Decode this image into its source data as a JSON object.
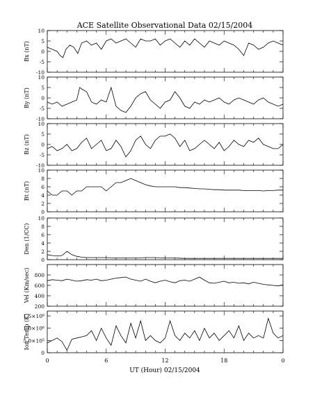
{
  "chart_data": {
    "type": "line",
    "title": "ACE Satellite Observational Data  02/15/2004",
    "xlabel": "UT (Hour)  02/15/2004",
    "x_range": [
      0,
      24
    ],
    "x_tick_labels": [
      "0",
      "6",
      "12",
      "18",
      "0"
    ],
    "grid": false,
    "panels": [
      {
        "ylabel": "Bx (nT)",
        "ylim": [
          -10,
          10
        ],
        "y_ticks": [
          "-10",
          "-5",
          "0",
          "5",
          "10"
        ],
        "series": [
          {
            "x": [
              0,
              0.5,
              1,
              1.3,
              1.6,
              1.9,
              2.3,
              2.7,
              3.1,
              3.5,
              4,
              4.5,
              5,
              5.5,
              6,
              6.5,
              7,
              7.5,
              8,
              8.5,
              9,
              9.5,
              10,
              10.5,
              11,
              11.5,
              12,
              12.5,
              13,
              13.5,
              14,
              14.5,
              15,
              15.5,
              16,
              16.5,
              17,
              17.5,
              18,
              18.5,
              19,
              19.5,
              20,
              20.5,
              21,
              21.5,
              22,
              22.5,
              23,
              23.5,
              24
            ],
            "values": [
              2,
              1,
              0,
              -2,
              -3,
              1,
              3,
              2,
              -1,
              4,
              5,
              3,
              4,
              1,
              5,
              6,
              4,
              5,
              6,
              4,
              2,
              6,
              5,
              5,
              6,
              3,
              5,
              6,
              4,
              2,
              5,
              3,
              6,
              4,
              2,
              5,
              4,
              3,
              5,
              4,
              3,
              1,
              -2,
              4,
              3,
              1,
              2,
              4,
              5,
              4,
              3
            ]
          }
        ]
      },
      {
        "ylabel": "By (nT)",
        "ylim": [
          -10,
          10
        ],
        "y_ticks": [
          "-10",
          "-5",
          "0",
          "5",
          "10"
        ],
        "series": [
          {
            "x": [
              0,
              0.5,
              1,
              1.5,
              2,
              2.5,
              3,
              3.3,
              3.6,
              4,
              4.5,
              5,
              5.5,
              6,
              6.5,
              7,
              7.5,
              8,
              8.5,
              9,
              9.5,
              10,
              10.5,
              11,
              11.5,
              12,
              12.5,
              13,
              13.5,
              14,
              14.5,
              15,
              15.5,
              16,
              16.5,
              17,
              17.5,
              18,
              18.5,
              19,
              19.5,
              20,
              20.5,
              21,
              21.5,
              22,
              22.5,
              23,
              23.5,
              24
            ],
            "values": [
              -2,
              -3,
              -2,
              -4,
              -3,
              -2,
              -1,
              5,
              4,
              3,
              -2,
              -3,
              -1,
              -2,
              5,
              -4,
              -6,
              -7,
              -4,
              0,
              2,
              3,
              -1,
              -3,
              -5,
              -2,
              -1,
              3,
              0,
              -4,
              -5,
              -2,
              -3,
              -1,
              -2,
              -1,
              0,
              -2,
              -3,
              -1,
              0,
              -1,
              -2,
              -3,
              -1,
              0,
              -2,
              -3,
              -4,
              -3
            ]
          }
        ]
      },
      {
        "ylabel": "Bz (nT)",
        "ylim": [
          -10,
          10
        ],
        "y_ticks": [
          "-10",
          "-5",
          "0",
          "5",
          "10"
        ],
        "series": [
          {
            "x": [
              0,
              0.5,
              1,
              1.5,
              2,
              2.5,
              3,
              3.5,
              4,
              4.5,
              5,
              5.5,
              6,
              6.5,
              7,
              7.5,
              8,
              8.5,
              9,
              9.5,
              10,
              10.5,
              11,
              11.5,
              12,
              12.5,
              13,
              13.5,
              14,
              14.5,
              15,
              15.5,
              16,
              16.5,
              17,
              17.5,
              18,
              18.5,
              19,
              19.5,
              20,
              20.5,
              21,
              21.5,
              22,
              22.5,
              23,
              23.5,
              24
            ],
            "values": [
              -2,
              -1,
              -3,
              -2,
              0,
              -3,
              -2,
              1,
              3,
              -2,
              0,
              2,
              -3,
              -2,
              2,
              -1,
              -6,
              -3,
              2,
              4,
              0,
              -2,
              2,
              4,
              4,
              5,
              3,
              -1,
              2,
              -3,
              -2,
              0,
              2,
              0,
              -2,
              1,
              -3,
              -1,
              2,
              0,
              -1,
              2,
              1,
              3,
              0,
              -1,
              -2,
              -2,
              0
            ]
          }
        ]
      },
      {
        "ylabel": "Bt (nT)",
        "ylim": [
          0,
          10
        ],
        "y_ticks": [
          "0",
          "2",
          "4",
          "6",
          "8",
          "10"
        ],
        "series": [
          {
            "x": [
              0,
              0.5,
              1,
              1.5,
              2,
              2.5,
              3,
              3.5,
              4,
              4.5,
              5,
              5.5,
              6,
              6.5,
              7,
              7.5,
              8,
              8.5,
              9,
              9.5,
              10,
              10.5,
              11,
              11.5,
              12,
              12.5,
              13,
              13.5,
              14,
              14.5,
              15,
              15.5,
              16,
              16.5,
              17,
              17.5,
              18,
              18.5,
              19,
              19.5,
              20,
              20.5,
              21,
              21.5,
              22,
              22.5,
              23,
              23.5,
              24
            ],
            "values": [
              5,
              4,
              4,
              5,
              5,
              4,
              5,
              5,
              6,
              6,
              6,
              6,
              5,
              6,
              7,
              7,
              7.5,
              8,
              7.5,
              7,
              6.5,
              6.2,
              6,
              6,
              6,
              6,
              6,
              5.8,
              5.8,
              5.7,
              5.6,
              5.5,
              5.5,
              5.4,
              5.3,
              5.3,
              5.2,
              5.2,
              5.2,
              5.2,
              5.1,
              5.1,
              5.1,
              5.1,
              5,
              5.1,
              5.1,
              5.2,
              5.2
            ]
          }
        ]
      },
      {
        "ylabel": "Den (1/CC)",
        "ylim": [
          0,
          10
        ],
        "y_ticks": [
          "0",
          "2",
          "4",
          "6",
          "8",
          "10"
        ],
        "series": [
          {
            "x": [
              0,
              0.5,
              1,
              1.5,
              2,
              2.5,
              3,
              3.5,
              4,
              4.5,
              5,
              6,
              7,
              8,
              9,
              10,
              11,
              12,
              13,
              14,
              15,
              16,
              17,
              18,
              19,
              20,
              21,
              22,
              23,
              24
            ],
            "values": [
              1.2,
              1.0,
              0.9,
              1.0,
              2.0,
              1.2,
              0.8,
              0.6,
              0.5,
              0.5,
              0.5,
              0.5,
              0.4,
              0.4,
              0.4,
              0.5,
              0.5,
              0.4,
              0.4,
              0.3,
              0.3,
              0.3,
              0.3,
              0.3,
              0.3,
              0.3,
              0.3,
              0.3,
              0.3,
              0.3
            ]
          }
        ]
      },
      {
        "ylabel": "Vel (Km/sec)",
        "ylim": [
          200,
          1000
        ],
        "y_ticks": [
          "200",
          "400",
          "600",
          "800"
        ],
        "series": [
          {
            "x": [
              0,
              0.5,
              1,
              1.5,
              2,
              2.5,
              3,
              3.5,
              4,
              4.5,
              5,
              5.5,
              6,
              6.5,
              7,
              7.5,
              8,
              8.5,
              9,
              9.5,
              10,
              10.5,
              11,
              11.5,
              12,
              12.5,
              13,
              13.5,
              14,
              14.5,
              15,
              15.5,
              16,
              16.5,
              17,
              17.5,
              18,
              18.5,
              19,
              19.5,
              20,
              20.5,
              21,
              21.5,
              22,
              22.5,
              23,
              23.5,
              24
            ],
            "values": [
              690,
              710,
              700,
              690,
              720,
              700,
              680,
              690,
              710,
              700,
              720,
              690,
              700,
              720,
              740,
              750,
              760,
              720,
              700,
              680,
              720,
              680,
              650,
              680,
              700,
              670,
              650,
              690,
              700,
              680,
              720,
              760,
              700,
              650,
              640,
              660,
              680,
              650,
              660,
              640,
              650,
              630,
              660,
              640,
              620,
              610,
              600,
              590,
              610
            ]
          }
        ]
      },
      {
        "ylabel": "Ion Temp (K)",
        "ylim": [
          0,
          1700000
        ],
        "y_ticks": [
          "0",
          "5.0×10⁵",
          "1.0×10⁶",
          "1.5×10⁶"
        ],
        "series": [
          {
            "x": [
              0,
              0.5,
              1,
              1.5,
              2,
              2.5,
              3,
              3.5,
              4,
              4.5,
              5,
              5.5,
              6,
              6.5,
              7,
              7.5,
              8,
              8.5,
              9,
              9.5,
              10,
              10.5,
              11,
              11.5,
              12,
              12.5,
              13,
              13.5,
              14,
              14.5,
              15,
              15.5,
              16,
              16.5,
              17,
              17.5,
              18,
              18.5,
              19,
              19.5,
              20,
              20.5,
              21,
              21.5,
              22,
              22.5,
              23,
              23.5,
              24
            ],
            "values": [
              400000,
              500000,
              600000,
              450000,
              100000,
              550000,
              600000,
              650000,
              700000,
              900000,
              500000,
              1000000,
              600000,
              300000,
              1100000,
              700000,
              400000,
              1200000,
              600000,
              1300000,
              500000,
              700000,
              500000,
              400000,
              600000,
              1300000,
              700000,
              500000,
              800000,
              600000,
              900000,
              500000,
              1000000,
              600000,
              800000,
              500000,
              700000,
              900000,
              600000,
              1100000,
              500000,
              800000,
              600000,
              700000,
              600000,
              1400000,
              800000,
              600000,
              700000
            ]
          }
        ]
      }
    ]
  }
}
